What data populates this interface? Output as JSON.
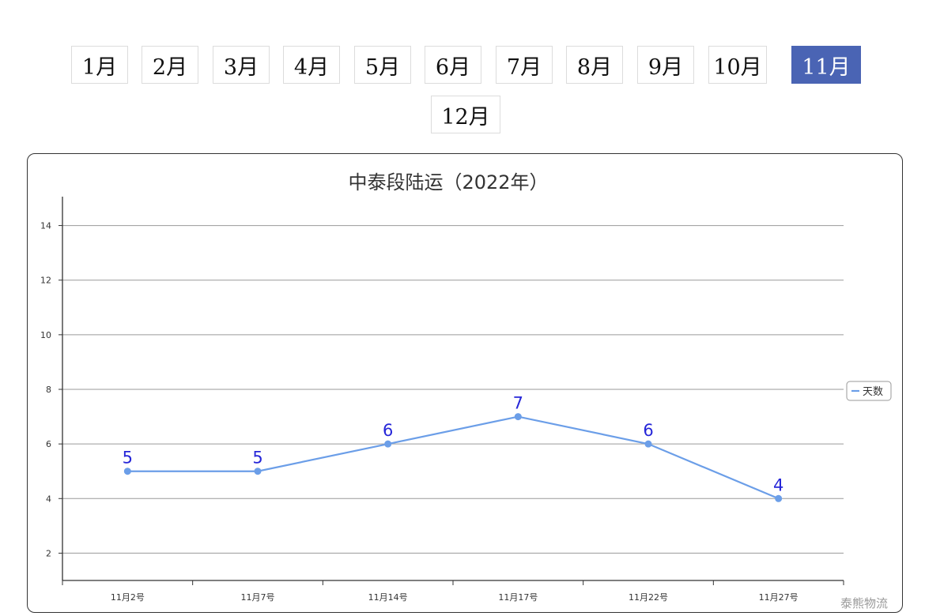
{
  "month_nav": {
    "months": [
      "1月",
      "2月",
      "3月",
      "4月",
      "5月",
      "6月",
      "7月",
      "8月",
      "9月",
      "10月",
      "11月",
      "12月"
    ],
    "selected": "11月",
    "active_color": "#4a64b4"
  },
  "chart_data": {
    "type": "line",
    "title": "中泰段陆运（2022年）",
    "categories": [
      "11月2号",
      "11月7号",
      "11月14号",
      "11月17号",
      "11月22号",
      "11月27号"
    ],
    "series": [
      {
        "name": "天数",
        "values": [
          5,
          5,
          6,
          7,
          6,
          4
        ],
        "color": "#6b9ee8"
      }
    ],
    "yticks": [
      2,
      4,
      6,
      8,
      10,
      12,
      14
    ],
    "ylim": [
      1,
      15
    ],
    "grid": true,
    "legend_position": "right",
    "label_color": "#2626d8"
  },
  "watermark": "泰熊物流"
}
